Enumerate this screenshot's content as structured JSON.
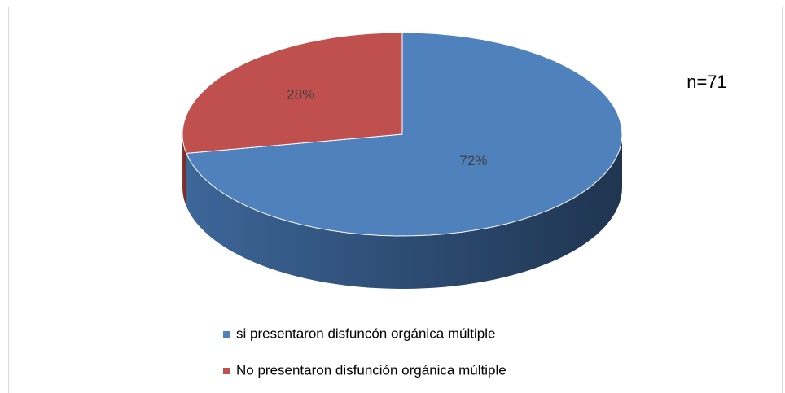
{
  "chart_data": {
    "type": "pie",
    "categories": [
      "si presentaron disfuncón orgánica múltiple",
      "No presentaron disfunción orgánica múltiple"
    ],
    "values": [
      72,
      28
    ],
    "value_labels": [
      "72%",
      "28%"
    ],
    "colors": [
      "#4f81bd",
      "#c0504d"
    ],
    "annotation": "n=71",
    "legend": "bottom"
  }
}
